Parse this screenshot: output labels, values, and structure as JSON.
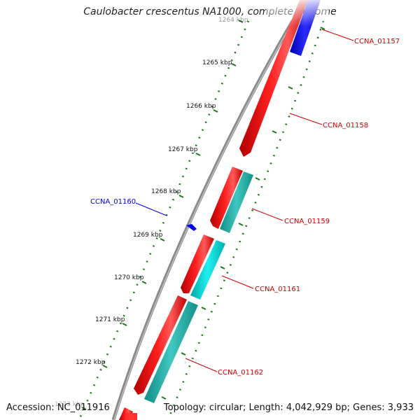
{
  "title": "Caulobacter crescentus NA1000, complete genome",
  "footer": {
    "accession": "Accession: NC_011916",
    "summary": "Topology: circular; Length: 4,042,929 bp; Genes: 3,933"
  },
  "colors": {
    "backbone": "#8a8a8a",
    "forward_cds": "#ff0000",
    "reverse_cds_a": "#00e5e5",
    "reverse_cds_b": "#20b2aa",
    "blue_feature": "#0000ee",
    "tick": "#1a7a1a",
    "label_red": "#cc0000",
    "label_blue": "#0000cc"
  },
  "ticks": [
    {
      "label": "1264 kbp"
    },
    {
      "label": "1265 kbp"
    },
    {
      "label": "1266 kbp"
    },
    {
      "label": "1267 kbp"
    },
    {
      "label": "1268 kbp"
    },
    {
      "label": "1269 kbp"
    },
    {
      "label": "1270 kbp"
    },
    {
      "label": "1271 kbp"
    },
    {
      "label": "1272 kbp"
    },
    {
      "label": "1273 kbp"
    }
  ],
  "genes": [
    {
      "label": "CCNA_01157"
    },
    {
      "label": "CCNA_01158"
    },
    {
      "label": "CCNA_01159"
    },
    {
      "label": "CCNA_01160"
    },
    {
      "label": "CCNA_01161"
    },
    {
      "label": "CCNA_01162"
    }
  ]
}
